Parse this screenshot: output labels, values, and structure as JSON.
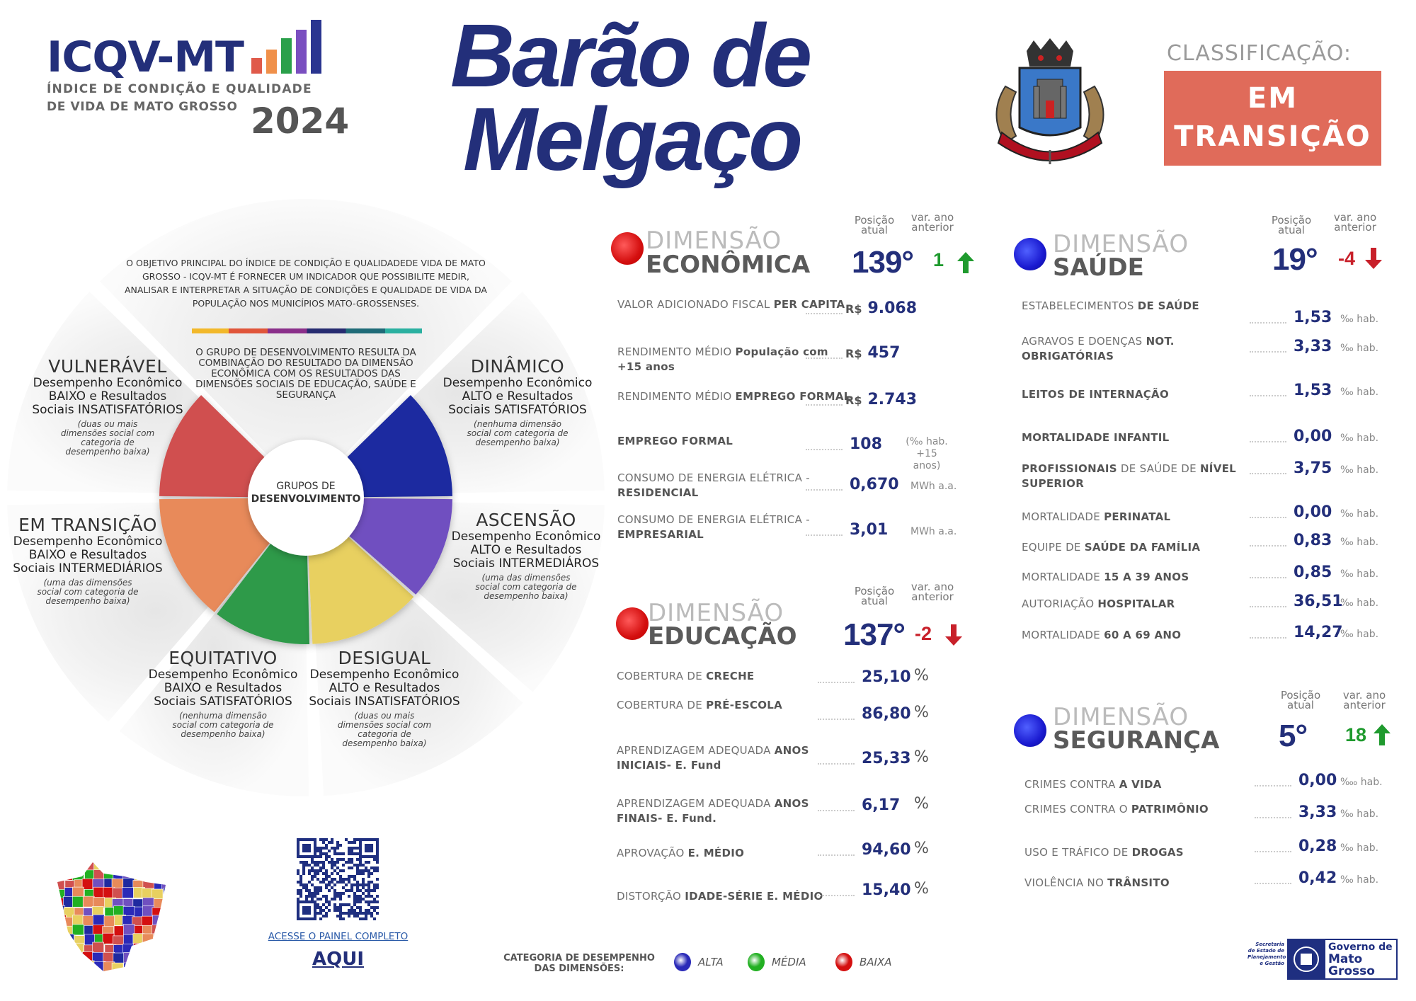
{
  "header": {
    "logo_title": "ICQV-MT",
    "logo_subtitle_1": "ÍNDICE DE CONDIÇÃO E QUALIDADE",
    "logo_subtitle_2": "DE VIDA DE MATO GROSSO",
    "year": "2024",
    "logo_bar_colors": [
      "#e05a4a",
      "#f0904a",
      "#2aa04a",
      "#7a4fc0",
      "#2a3590"
    ],
    "city_line_1": "Barão de",
    "city_line_2": "Melgaço",
    "classification_label": "CLASSIFICAÇÃO:",
    "classification_line_1": "EM",
    "classification_line_2": "TRANSIÇÃO",
    "classification_color": "#e06b5a"
  },
  "wheel": {
    "objective": "O OBJETIVO PRINCIPAL DO ÍNDICE DE CONDIÇÃO E QUALIDADEDE VIDA DE MATO GROSSO -  ICQV-MT É FORNECER UM INDICADOR QUE POSSIBILITE MEDIR, ANALISAR E INTERPRETAR A SITUAÇÃO DE CONDIÇÕES E QUALIDADE DE VIDA DA POPULAÇÃO NOS MUNICÍPIOS MATO-GROSSENSES.",
    "group_text": "O GRUPO DE DESENVOLVIMENTO RESULTA DA COMBINAÇÃO DO RESULTADO DA DIMENSÃO ECONÔMICA  COM OS RESULTADOS DAS DIMENSÕES SOCIAIS DE EDUCAÇÃO, SAÚDE E SEGURANÇA",
    "center_line_1": "GRUPOS DE",
    "center_line_2": "DESENVOLVIMENTO",
    "groups": [
      {
        "key": "vulneravel",
        "title": "VULNERÁVEL",
        "body": "Desempenho Econômico BAIXO e Resultados Sociais INSATISFATÓRIOS",
        "note": "(duas ou mais dimensões social com categoria de desempenho baixa)",
        "color": "#d0504f"
      },
      {
        "key": "dinamico",
        "title": "DINÂMICO",
        "body": "Desempenho Econômico ALTO e Resultados Sociais SATISFATÓRIOS",
        "note": "(nenhuma dimensão social com categoria de desempenho baixa)",
        "color": "#1f2aa0"
      },
      {
        "key": "em-transicao",
        "title": "EM TRANSIÇÃO",
        "body": "Desempenho Econômico BAIXO e Resultados Sociais INTERMEDIÁRIOS",
        "note": "(uma das dimensões social com categoria de desempenho baixa)",
        "color": "#e88a5a"
      },
      {
        "key": "ascensao",
        "title": "ASCENSÃO",
        "body": "Desempenho Econômico ALTO e Resultados Sociais INTERMEDIÁROS",
        "note": "(uma das dimensões social com categoria de desempenho baixa)",
        "color": "#7050c0"
      },
      {
        "key": "equitativo",
        "title": "EQUITATIVO",
        "body": "Desempenho Econômico BAIXO e Resultados Sociais SATISFATÓRIOS",
        "note": "(nenhuma dimensão social com categoria de desempenho baixa)",
        "color": "#2e9a48"
      },
      {
        "key": "desigual",
        "title": "DESIGUAL",
        "body": "Desempenho Econômico ALTO e Resultados Sociais INSATISFATÓRIOS",
        "note": "(duas ou mais dimensões social com categoria de desempenho baixa)",
        "color": "#e8d060"
      }
    ]
  },
  "column_headers": {
    "position": "Posição atual",
    "variation": "var. ano anterior"
  },
  "dimensions": {
    "economica": {
      "kicker": "DIMENSÃO",
      "name": "ECONÔMICA",
      "category": "BAIXA",
      "position": "139°",
      "variation": "1",
      "trend": "up",
      "rows": [
        {
          "label": [
            [
              "VALOR  ADICIONADO  FISCAL ",
              false
            ],
            [
              "PER CAPITA",
              true
            ]
          ],
          "currency": "R$",
          "value": "9.068",
          "unit": ""
        },
        {
          "label": [
            [
              "RENDIMENTO MÉDIO ",
              false
            ],
            [
              "População com +15 anos",
              true
            ]
          ],
          "currency": "R$",
          "value": "457",
          "unit": ""
        },
        {
          "label": [
            [
              "RENDIMENTO MÉDIO ",
              false
            ],
            [
              "EMPREGO FORMAL",
              true
            ]
          ],
          "currency": "R$",
          "value": "2.743",
          "unit": ""
        },
        {
          "label": [
            [
              "EMPREGO FORMAL",
              true
            ]
          ],
          "currency": "",
          "value": "108",
          "unit": "(‰ hab. +15 anos)"
        },
        {
          "label": [
            [
              "CONSUMO DE ENERGIA ELÉTRICA - ",
              false
            ],
            [
              "RESIDENCIAL",
              true
            ]
          ],
          "currency": "",
          "value": "0,670",
          "unit": "MWh a.a."
        },
        {
          "label": [
            [
              "CONSUMO DE ENERGIA ELÉTRICA - ",
              false
            ],
            [
              "EMPRESARIAL",
              true
            ]
          ],
          "currency": "",
          "value": "3,01",
          "unit": "MWh a.a."
        }
      ]
    },
    "educacao": {
      "kicker": "DIMENSÃO",
      "name": "EDUCAÇÃO",
      "category": "BAIXA",
      "position": "137°",
      "variation": "-2",
      "trend": "down",
      "rows": [
        {
          "label": [
            [
              "COBERTURA DE ",
              false
            ],
            [
              "CRECHE",
              true
            ]
          ],
          "currency": "",
          "value": "25,10",
          "unit": "%"
        },
        {
          "label": [
            [
              "COBERTURA DE ",
              false
            ],
            [
              "PRÉ-ESCOLA",
              true
            ]
          ],
          "currency": "",
          "value": "86,80",
          "unit": "%"
        },
        {
          "label": [
            [
              "APRENDIZAGEM ADEQUADA ",
              false
            ],
            [
              "ANOS INICIAIS- E. Fund",
              true
            ]
          ],
          "currency": "",
          "value": "25,33",
          "unit": "%"
        },
        {
          "label": [
            [
              "APRENDIZAGEM ADEQUADA ",
              false
            ],
            [
              "ANOS FINAIS- E. Fund.",
              true
            ]
          ],
          "currency": "",
          "value": "6,17",
          "unit": "%"
        },
        {
          "label": [
            [
              "APROVAÇÃO ",
              false
            ],
            [
              "E. MÉDIO",
              true
            ]
          ],
          "currency": "",
          "value": "94,60",
          "unit": "%"
        },
        {
          "label": [
            [
              "DISTORÇÃO ",
              false
            ],
            [
              "IDADE-SÉRIE E. MÉDIO",
              true
            ]
          ],
          "currency": "",
          "value": "15,40",
          "unit": "%"
        }
      ]
    },
    "saude": {
      "kicker": "DIMENSÃO",
      "name": "SAÚDE",
      "category": "ALTA",
      "position": "19°",
      "variation": "-4",
      "trend": "down",
      "rows": [
        {
          "label": [
            [
              "ESTABELECIMENTOS ",
              false
            ],
            [
              "DE SAÚDE",
              true
            ]
          ],
          "currency": "",
          "value": "1,53",
          "unit": "‰ hab."
        },
        {
          "label": [
            [
              "AGRAVOS E DOENÇAS ",
              false
            ],
            [
              "NOT. OBRIGATÓRIAS",
              true
            ]
          ],
          "currency": "",
          "value": "3,33",
          "unit": "‰ hab."
        },
        {
          "label": [
            [
              "LEITOS DE INTERNAÇÃO",
              true
            ]
          ],
          "currency": "",
          "value": "1,53",
          "unit": "‰ hab."
        },
        {
          "label": [
            [
              "MORTALIDADE INFANTIL",
              true
            ]
          ],
          "currency": "",
          "value": "0,00",
          "unit": "‰ hab."
        },
        {
          "label": [
            [
              "PROFISSIONAIS",
              true
            ],
            [
              " DE SAÚDE DE ",
              false
            ],
            [
              "NÍVEL SUPERIOR",
              true
            ]
          ],
          "currency": "",
          "value": "3,75",
          "unit": "‰ hab."
        },
        {
          "label": [
            [
              "MORTALIDADE ",
              false
            ],
            [
              "PERINATAL",
              true
            ]
          ],
          "currency": "",
          "value": "0,00",
          "unit": "‰ hab."
        },
        {
          "label": [
            [
              "EQUIPE DE ",
              false
            ],
            [
              "SAÚDE DA FAMÍLIA",
              true
            ]
          ],
          "currency": "",
          "value": "0,83",
          "unit": "‰ hab."
        },
        {
          "label": [
            [
              "MORTALIDADE ",
              false
            ],
            [
              "15 A 39 ANOS",
              true
            ]
          ],
          "currency": "",
          "value": "0,85",
          "unit": "‰ hab."
        },
        {
          "label": [
            [
              "AUTORIAÇÃO ",
              false
            ],
            [
              "HOSPITALAR",
              true
            ]
          ],
          "currency": "",
          "value": "36,51",
          "unit": "‰ hab."
        },
        {
          "label": [
            [
              "MORTALIDADE ",
              false
            ],
            [
              "60 A 69 ANO",
              true
            ]
          ],
          "currency": "",
          "value": "14,27",
          "unit": "‰ hab."
        }
      ]
    },
    "seguranca": {
      "kicker": "DIMENSÃO",
      "name": "SEGURANÇA",
      "category": "ALTA",
      "position": "5°",
      "variation": "18",
      "trend": "up",
      "rows": [
        {
          "label": [
            [
              "CRIMES CONTRA ",
              false
            ],
            [
              "A VIDA",
              true
            ]
          ],
          "currency": "",
          "value": "0,00",
          "unit": "‱ hab."
        },
        {
          "label": [
            [
              "CRIMES CONTRA O ",
              false
            ],
            [
              "PATRIMÔNIO",
              true
            ]
          ],
          "currency": "",
          "value": "3,33",
          "unit": "‰ hab."
        },
        {
          "label": [
            [
              "USO E TRÁFICO DE ",
              false
            ],
            [
              "DROGAS",
              true
            ]
          ],
          "currency": "",
          "value": "0,28",
          "unit": "‰ hab."
        },
        {
          "label": [
            [
              "VIOLÊNCIA NO ",
              false
            ],
            [
              "TRÂNSITO",
              true
            ]
          ],
          "currency": "",
          "value": "0,42",
          "unit": "‰ hab."
        }
      ]
    }
  },
  "footer": {
    "panel_link": "ACESSE O PAINEL COMPLETO",
    "aqui": "AQUI",
    "legend_title": "CATEGORIA DE DESEMPENHO DAS DIMENSÕES:",
    "legend": [
      {
        "label": "ALTA",
        "color": "#2a2ab8"
      },
      {
        "label": "MÉDIA",
        "color": "#22b022"
      },
      {
        "label": "BAIXA",
        "color": "#d41010"
      }
    ],
    "gov_logo": {
      "secretaria": "Secretaria de Estado de Planejamento e Gestão",
      "name_1": "Governo de",
      "name_2": "Mato",
      "name_3": "Grosso"
    }
  }
}
